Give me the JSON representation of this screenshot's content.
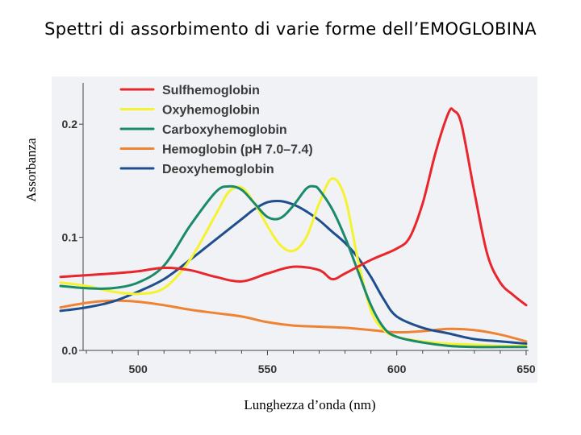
{
  "slide": {
    "title": "Spettri di assorbimento di varie forme dell’EMOGLOBINA",
    "y_title": "Assorbanza",
    "x_title": "Lunghezza d’onda (nm)"
  },
  "chart_data": {
    "type": "line",
    "xlim": [
      470,
      650
    ],
    "ylim": [
      0.0,
      0.24
    ],
    "x_ticks": [
      "500",
      "550",
      "600",
      "650"
    ],
    "x_tick_values": [
      500,
      550,
      600,
      650
    ],
    "y_ticks": [
      "0.0",
      "0.1",
      "0.2"
    ],
    "y_tick_values": [
      0.0,
      0.1,
      0.2
    ],
    "grid": false,
    "legend": "top-left",
    "series": [
      {
        "name": "Sulfhemoglobin",
        "color": "#e8262b",
        "x": [
          470,
          490,
          500,
          510,
          520,
          530,
          540,
          550,
          560,
          570,
          575,
          580,
          590,
          600,
          605,
          610,
          615,
          620,
          622,
          625,
          630,
          635,
          640,
          645,
          650
        ],
        "y": [
          0.065,
          0.068,
          0.07,
          0.073,
          0.071,
          0.065,
          0.061,
          0.068,
          0.074,
          0.071,
          0.063,
          0.068,
          0.08,
          0.09,
          0.1,
          0.13,
          0.175,
          0.21,
          0.212,
          0.2,
          0.14,
          0.085,
          0.06,
          0.049,
          0.04
        ]
      },
      {
        "name": "Oxyhemoglobin",
        "color": "#f5f230",
        "x": [
          470,
          480,
          490,
          500,
          510,
          520,
          530,
          535,
          540,
          545,
          550,
          555,
          560,
          565,
          570,
          575,
          580,
          585,
          590,
          595,
          600,
          610,
          620,
          630,
          640,
          650
        ],
        "y": [
          0.06,
          0.057,
          0.052,
          0.05,
          0.055,
          0.08,
          0.12,
          0.14,
          0.144,
          0.13,
          0.11,
          0.093,
          0.088,
          0.1,
          0.13,
          0.152,
          0.135,
          0.08,
          0.035,
          0.018,
          0.012,
          0.008,
          0.006,
          0.005,
          0.004,
          0.004
        ]
      },
      {
        "name": "Carboxyhemoglobin",
        "color": "#1a8a6a",
        "x": [
          470,
          480,
          490,
          500,
          510,
          520,
          530,
          535,
          540,
          545,
          550,
          555,
          560,
          565,
          568,
          570,
          575,
          580,
          585,
          590,
          595,
          600,
          610,
          620,
          630,
          640,
          650
        ],
        "y": [
          0.057,
          0.055,
          0.055,
          0.06,
          0.075,
          0.11,
          0.14,
          0.145,
          0.142,
          0.13,
          0.118,
          0.117,
          0.128,
          0.143,
          0.145,
          0.142,
          0.125,
          0.1,
          0.07,
          0.04,
          0.02,
          0.012,
          0.007,
          0.004,
          0.003,
          0.003,
          0.003
        ]
      },
      {
        "name": "Hemoglobin (pH 7.0–7.4)",
        "color": "#ee8433",
        "x": [
          470,
          480,
          490,
          500,
          510,
          520,
          530,
          540,
          550,
          560,
          570,
          580,
          590,
          600,
          610,
          620,
          630,
          640,
          650
        ],
        "y": [
          0.038,
          0.042,
          0.044,
          0.043,
          0.04,
          0.036,
          0.033,
          0.03,
          0.025,
          0.022,
          0.021,
          0.02,
          0.018,
          0.016,
          0.017,
          0.019,
          0.018,
          0.014,
          0.008
        ]
      },
      {
        "name": "Deoxyhemoglobin",
        "color": "#1f4e8e",
        "x": [
          470,
          480,
          490,
          500,
          510,
          520,
          530,
          540,
          545,
          550,
          555,
          560,
          565,
          570,
          575,
          580,
          585,
          590,
          595,
          600,
          610,
          620,
          630,
          640,
          650
        ],
        "y": [
          0.035,
          0.038,
          0.043,
          0.052,
          0.063,
          0.08,
          0.098,
          0.116,
          0.125,
          0.131,
          0.132,
          0.129,
          0.123,
          0.115,
          0.105,
          0.095,
          0.082,
          0.065,
          0.045,
          0.03,
          0.02,
          0.015,
          0.01,
          0.008,
          0.006
        ]
      }
    ]
  }
}
